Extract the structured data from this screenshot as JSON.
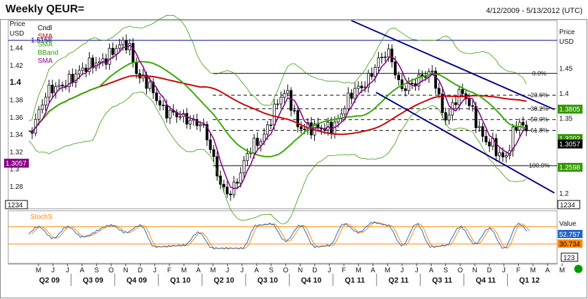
{
  "header": {
    "title": "Weekly QEUR=",
    "date_range": "4/12/2009 - 5/13/2012 (UTC)"
  },
  "colors": {
    "candle": "#000000",
    "sma_long": "#cc0000",
    "sma_mid": "#33aa00",
    "bband": "#339900",
    "sma_short": "#880088",
    "channel": "#000088",
    "stoch_k": "#2266cc",
    "stoch_d": "#ff8800",
    "status_dot": "#009900"
  },
  "chart_data": [
    {
      "type": "candlestick",
      "left_axis_label": [
        "Price",
        "USD"
      ],
      "right_axis_label": [
        "Price",
        "USD"
      ],
      "left_ticks": [
        "1.44",
        "1.42",
        "1.4",
        "1.38",
        "1.36",
        "1.34",
        "1.32",
        "1.3",
        "1.28"
      ],
      "right_ticks": [
        "1.45",
        "1.4",
        "1.35",
        "1.3",
        "1.25",
        "1.2"
      ],
      "scale_box": "1234",
      "legend": [
        "Cndl",
        "SMA",
        "SMA",
        "BBand",
        "SMA"
      ],
      "high_marker": "1.5158",
      "fib_levels": [
        {
          "label": "0.0%",
          "price": 1.4393
        },
        {
          "label": "23.6%",
          "price": 1.3957
        },
        {
          "label": "38.2%",
          "price": 1.3687
        },
        {
          "label": "50.0%",
          "price": 1.347
        },
        {
          "label": "61.8%",
          "price": 1.3252
        },
        {
          "label": "100.0%",
          "price": 1.2546
        }
      ],
      "value_tags": [
        {
          "label": "1.3057",
          "side": "left",
          "color": "#880088"
        },
        {
          "label": "1.3805",
          "side": "right",
          "color": "#339900"
        },
        {
          "label": "1.3202",
          "side": "right",
          "color": "#339900"
        },
        {
          "label": "1.3057",
          "side": "right",
          "color": "#000000"
        },
        {
          "label": "1.2598",
          "side": "right",
          "color": "#339900"
        }
      ],
      "price_pivots": [
        [
          "2009-04",
          1.31
        ],
        [
          "2009-06",
          1.41
        ],
        [
          "2009-09",
          1.46
        ],
        [
          "2009-11",
          1.5
        ],
        [
          "2009-12",
          1.43
        ],
        [
          "2010-02",
          1.36
        ],
        [
          "2010-04",
          1.34
        ],
        [
          "2010-06",
          1.2
        ],
        [
          "2010-08",
          1.3
        ],
        [
          "2010-10",
          1.4
        ],
        [
          "2010-11",
          1.33
        ],
        [
          "2011-01",
          1.33
        ],
        [
          "2011-03",
          1.41
        ],
        [
          "2011-05",
          1.48
        ],
        [
          "2011-06",
          1.41
        ],
        [
          "2011-08",
          1.44
        ],
        [
          "2011-09",
          1.35
        ],
        [
          "2011-10",
          1.4
        ],
        [
          "2011-12",
          1.3
        ],
        [
          "2012-01",
          1.27
        ],
        [
          "2012-02",
          1.34
        ],
        [
          "2012-03",
          1.31
        ]
      ]
    },
    {
      "type": "line",
      "name_label": "StochS",
      "value_header": "Value",
      "values_now": [
        "52.757",
        "30.734"
      ],
      "scale_box": "123",
      "levels": [
        80,
        20
      ],
      "stoch_pivots": [
        [
          "2009-04",
          45
        ],
        [
          "2009-05",
          80
        ],
        [
          "2009-06",
          40
        ],
        [
          "2009-07",
          80
        ],
        [
          "2009-08",
          45
        ],
        [
          "2009-10",
          85
        ],
        [
          "2009-11",
          60
        ],
        [
          "2009-12",
          85
        ],
        [
          "2010-01",
          10
        ],
        [
          "2010-03",
          15
        ],
        [
          "2010-04",
          60
        ],
        [
          "2010-05",
          5
        ],
        [
          "2010-07",
          5
        ],
        [
          "2010-08",
          85
        ],
        [
          "2010-09",
          90
        ],
        [
          "2010-10",
          30
        ],
        [
          "2010-11",
          85
        ],
        [
          "2010-12",
          10
        ],
        [
          "2011-01",
          15
        ],
        [
          "2011-02",
          90
        ],
        [
          "2011-03",
          60
        ],
        [
          "2011-04",
          95
        ],
        [
          "2011-05",
          85
        ],
        [
          "2011-06",
          15
        ],
        [
          "2011-07",
          90
        ],
        [
          "2011-08",
          10
        ],
        [
          "2011-09",
          15
        ],
        [
          "2011-10",
          80
        ],
        [
          "2011-11",
          20
        ],
        [
          "2011-12",
          75
        ],
        [
          "2012-01",
          5
        ],
        [
          "2012-02",
          90
        ],
        [
          "2012-03",
          50
        ]
      ]
    }
  ],
  "x_axis": {
    "months": [
      "M",
      "J",
      "J",
      "A",
      "S",
      "O",
      "N",
      "D",
      "J",
      "F",
      "M",
      "A",
      "M",
      "J",
      "J",
      "A",
      "S",
      "O",
      "N",
      "D",
      "J",
      "F",
      "M",
      "A",
      "M",
      "J",
      "J",
      "A",
      "S",
      "O",
      "N",
      "D",
      "J",
      "F",
      "M",
      "A",
      "M"
    ],
    "quarters": [
      "Q2 09",
      "Q3 09",
      "Q4 09",
      "Q1 10",
      "Q2 10",
      "Q3 10",
      "Q4 10",
      "Q1 11",
      "Q2 11",
      "Q3 11",
      "Q4 11",
      "Q1 12"
    ]
  }
}
